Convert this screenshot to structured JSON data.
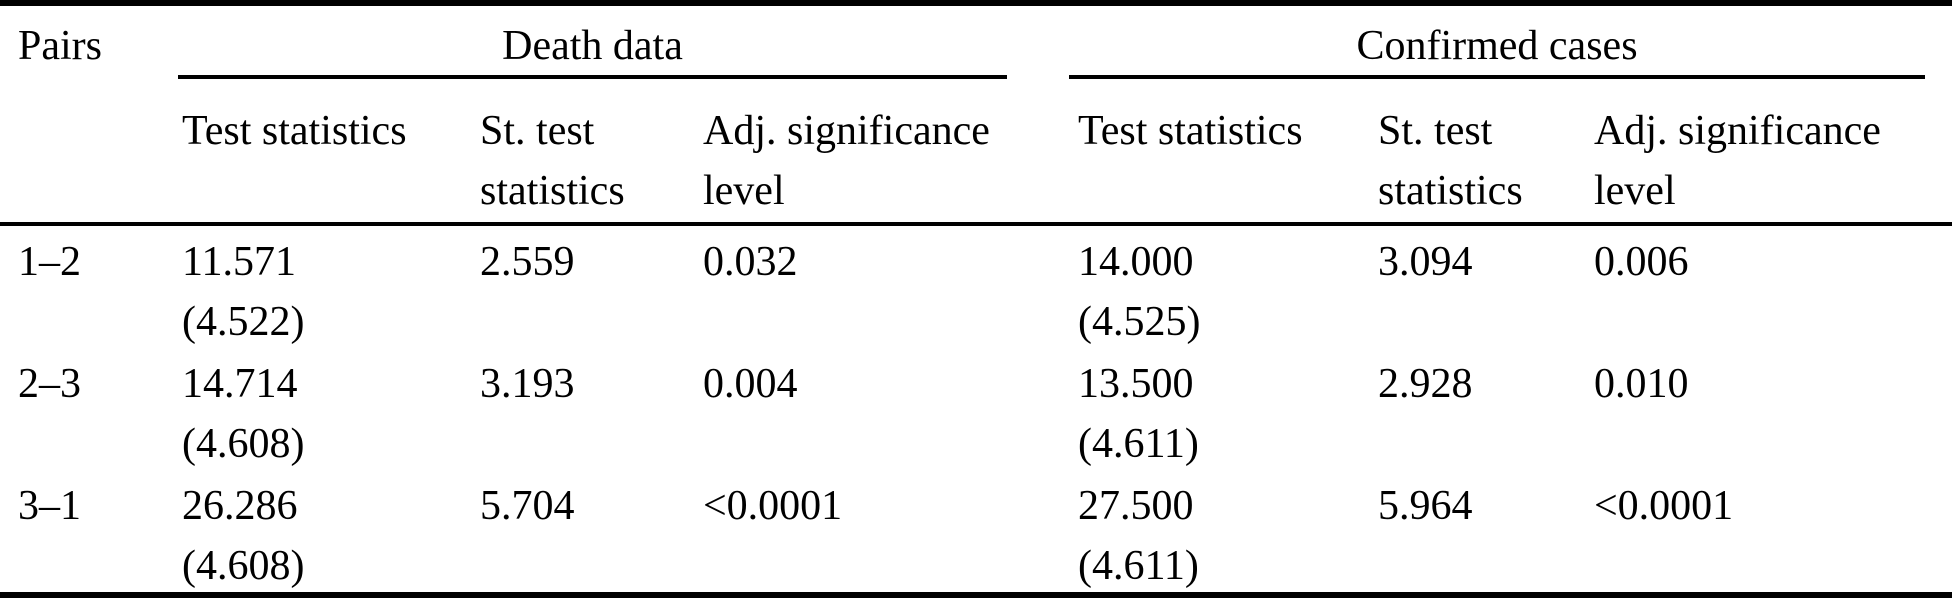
{
  "colors": {
    "text": "#000000",
    "background": "#ffffff",
    "rule": "#000000"
  },
  "table": {
    "pairs_header": "Pairs",
    "groups": [
      {
        "label": "Death data",
        "columns": [
          "Test statistics",
          "St. test statistics",
          "Adj. significance level"
        ]
      },
      {
        "label": "Confirmed cases",
        "columns": [
          "Test statistics",
          "St. test statistics",
          "Adj. significance level"
        ]
      }
    ],
    "rows": [
      {
        "pairs": "1–2",
        "death": {
          "test": "11.571",
          "test_paren": "(4.522)",
          "st_test": "2.559",
          "adj_sig": "0.032"
        },
        "confirmed": {
          "test": "14.000",
          "test_paren": "(4.525)",
          "st_test": "3.094",
          "adj_sig": "0.006"
        }
      },
      {
        "pairs": "2–3",
        "death": {
          "test": "14.714",
          "test_paren": "(4.608)",
          "st_test": "3.193",
          "adj_sig": "0.004"
        },
        "confirmed": {
          "test": "13.500",
          "test_paren": "(4.611)",
          "st_test": "2.928",
          "adj_sig": "0.010"
        }
      },
      {
        "pairs": "3–1",
        "death": {
          "test": "26.286",
          "test_paren": "(4.608)",
          "st_test": "5.704",
          "adj_sig": "<0.0001"
        },
        "confirmed": {
          "test": "27.500",
          "test_paren": "(4.611)",
          "st_test": "5.964",
          "adj_sig": "<0.0001"
        }
      }
    ]
  }
}
